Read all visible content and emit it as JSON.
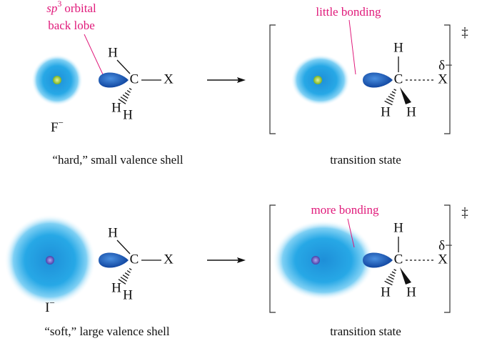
{
  "orbital_label": {
    "prefix": "sp",
    "superscript": "3",
    "line1_rest": "orbital",
    "line2": "back lobe"
  },
  "rows": [
    {
      "nucleophile": {
        "symbol": "F",
        "charge": "−"
      },
      "caption": "“hard,” small valence shell",
      "reactant": {
        "h_top": "H",
        "c": "C",
        "x": "X",
        "h_bottom_1": "H",
        "h_bottom_2": "H"
      },
      "ts_label": "little bonding",
      "transition_state": {
        "h_top": "H",
        "c": "C",
        "x": "X",
        "partial_charge": "δ−",
        "h_bottom_1": "H",
        "h_bottom_2": "H"
      },
      "ts_mark": "‡",
      "ts_caption": "transition state"
    },
    {
      "nucleophile": {
        "symbol": "I",
        "charge": "−"
      },
      "caption": "“soft,” large valence shell",
      "reactant": {
        "h_top": "H",
        "c": "C",
        "x": "X",
        "h_bottom_1": "H",
        "h_bottom_2": "H"
      },
      "ts_label": "more bonding",
      "transition_state": {
        "h_top": "H",
        "c": "C",
        "x": "X",
        "partial_charge": "δ−",
        "h_bottom_1": "H",
        "h_bottom_2": "H"
      },
      "ts_mark": "‡",
      "ts_caption": "transition state"
    }
  ]
}
